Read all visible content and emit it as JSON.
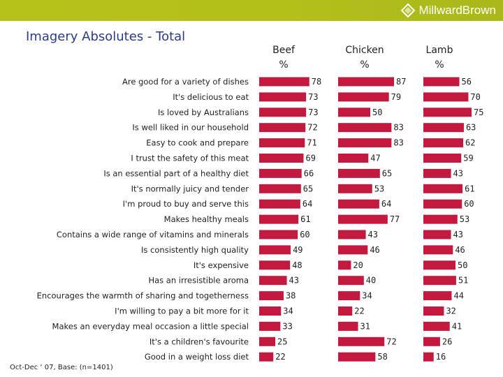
{
  "header": {
    "brand": "MillwardBrown",
    "title": "Imagery Absolutes - Total"
  },
  "footnote": "Oct-Dec ‘ 07, Base: (n=1401)",
  "colors": {
    "bar": "#c4193f",
    "topbar": "#b4c01a",
    "title": "#2c3a8c"
  },
  "chart_data": {
    "type": "bar",
    "orientation": "horizontal",
    "title": "Imagery Absolutes - Total",
    "unit": "%",
    "xlim": [
      0,
      100
    ],
    "categories": [
      "Are good for a variety of dishes",
      "It's delicious to eat",
      "Is loved by Australians",
      "Is well liked in our household",
      "Easy to cook and prepare",
      "I trust the safety of this meat",
      "Is an essential part of a healthy diet",
      "It's normally juicy and tender",
      "I'm proud to buy and serve this",
      "Makes healthy meals",
      "Contains a wide range of vitamins and minerals",
      "Is consistently high quality",
      "It's expensive",
      "Has an irresistible aroma",
      "Encourages the warmth of sharing and togetherness",
      "I'm willing to pay a bit more for it",
      "Makes an everyday meal occasion a little special",
      "It's a children's favourite",
      "Good in a weight loss diet"
    ],
    "series": [
      {
        "name": "Beef",
        "unit": "%",
        "values": [
          78,
          73,
          73,
          72,
          71,
          69,
          66,
          65,
          64,
          61,
          60,
          49,
          48,
          43,
          38,
          34,
          33,
          25,
          22
        ]
      },
      {
        "name": "Chicken",
        "unit": "%",
        "values": [
          87,
          79,
          50,
          83,
          83,
          47,
          65,
          53,
          64,
          77,
          43,
          46,
          20,
          40,
          34,
          22,
          31,
          72,
          58
        ]
      },
      {
        "name": "Lamb",
        "unit": "%",
        "values": [
          56,
          70,
          75,
          63,
          62,
          59,
          43,
          61,
          60,
          53,
          43,
          46,
          50,
          51,
          44,
          32,
          41,
          26,
          16
        ]
      }
    ]
  }
}
